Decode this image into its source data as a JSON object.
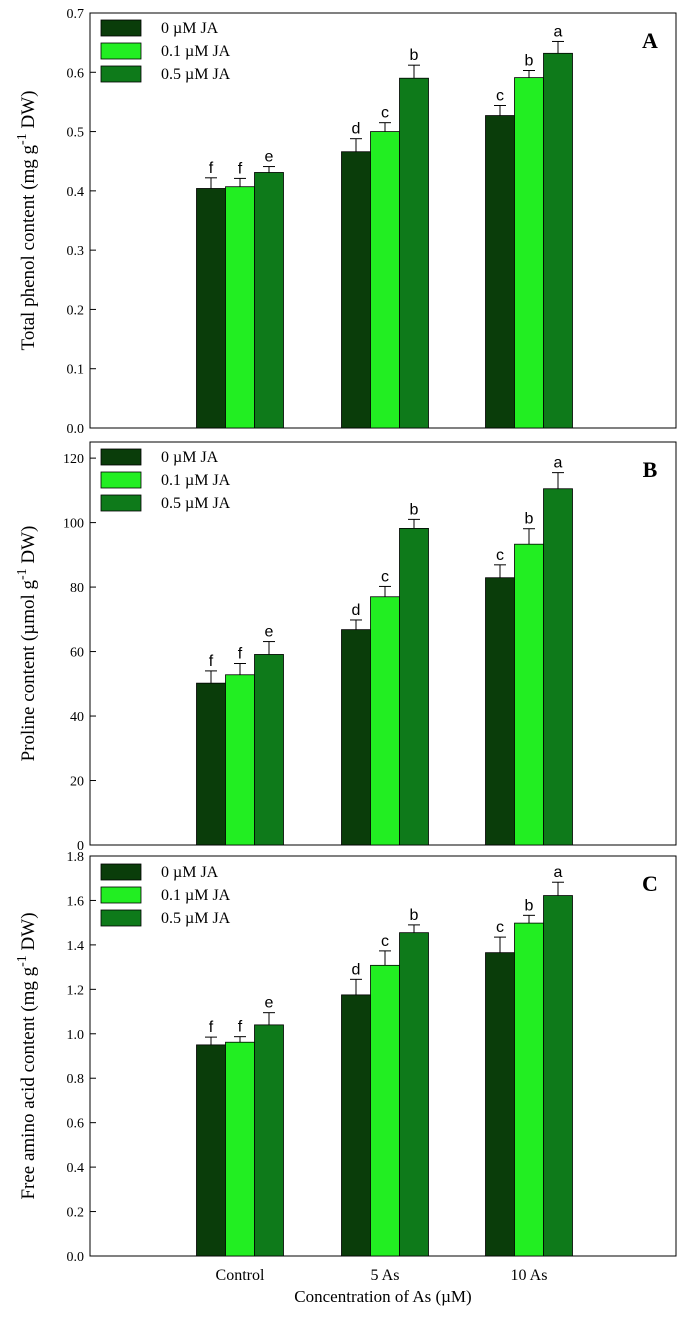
{
  "colors": {
    "series": [
      "#0a3d0a",
      "#22ee22",
      "#0e7a1a"
    ],
    "axis": "#000000",
    "background": "#ffffff"
  },
  "shared": {
    "categories": [
      "Control",
      "5 As",
      "10 As"
    ],
    "xlabel": "Concentration of As (µM)",
    "legend_location": "top-left"
  },
  "chart_data": [
    {
      "type": "bar",
      "panel": "A",
      "ylabel": "Total phenol content (mg g-1 DW)",
      "ylabel_parts": {
        "main": "Total phenol content (mg g",
        "sup": "-1",
        "tail": " DW)"
      },
      "ylim": [
        0,
        0.7
      ],
      "yticks": [
        "0.0",
        "0.1",
        "0.2",
        "0.3",
        "0.4",
        "0.5",
        "0.6",
        "0.7"
      ],
      "yticks_values": [
        0,
        0.1,
        0.2,
        0.3,
        0.4,
        0.5,
        0.6,
        0.7
      ],
      "categories": [
        "Control",
        "5 As",
        "10 As"
      ],
      "series": [
        {
          "name": "0 µM JA",
          "values": [
            0.404,
            0.466,
            0.527
          ],
          "errors": [
            0.018,
            0.022,
            0.017
          ],
          "letters": [
            "f",
            "d",
            "c"
          ]
        },
        {
          "name": "0.1 µM JA",
          "values": [
            0.407,
            0.5,
            0.591
          ],
          "errors": [
            0.014,
            0.015,
            0.012
          ],
          "letters": [
            "f",
            "c",
            "b"
          ]
        },
        {
          "name": "0.5 µM JA",
          "values": [
            0.431,
            0.59,
            0.632
          ],
          "errors": [
            0.01,
            0.022,
            0.02
          ],
          "letters": [
            "e",
            "b",
            "a"
          ]
        }
      ]
    },
    {
      "type": "bar",
      "panel": "B",
      "ylabel": "Proline content (µmol g-1 DW)",
      "ylabel_parts": {
        "main": "Proline content (µmol g",
        "sup": "-1",
        "tail": " DW)"
      },
      "ylim": [
        0,
        125
      ],
      "yticks": [
        "0",
        "20",
        "40",
        "60",
        "80",
        "100",
        "120"
      ],
      "yticks_values": [
        0,
        20,
        40,
        60,
        80,
        100,
        120
      ],
      "categories": [
        "Control",
        "5 As",
        "10 As"
      ],
      "series": [
        {
          "name": "0 µM JA",
          "values": [
            50.2,
            66.8,
            82.9
          ],
          "errors": [
            3.8,
            3.0,
            4.0
          ],
          "letters": [
            "f",
            "d",
            "c"
          ]
        },
        {
          "name": "0.1 µM JA",
          "values": [
            52.8,
            77.0,
            93.3
          ],
          "errors": [
            3.5,
            3.2,
            4.8
          ],
          "letters": [
            "f",
            "c",
            "b"
          ]
        },
        {
          "name": "0.5 µM JA",
          "values": [
            59.1,
            98.2,
            110.5
          ],
          "errors": [
            4.0,
            2.8,
            5.0
          ],
          "letters": [
            "e",
            "b",
            "a"
          ]
        }
      ]
    },
    {
      "type": "bar",
      "panel": "C",
      "ylabel": "Free amino acid content (mg g-1 DW)",
      "ylabel_parts": {
        "main": "Free amino acid content (mg g",
        "sup": "-1",
        "tail": " DW)"
      },
      "ylim": [
        0,
        1.8
      ],
      "yticks": [
        "0.0",
        "0.2",
        "0.4",
        "0.6",
        "0.8",
        "1.0",
        "1.2",
        "1.4",
        "1.6",
        "1.8"
      ],
      "yticks_values": [
        0,
        0.2,
        0.4,
        0.6,
        0.8,
        1.0,
        1.2,
        1.4,
        1.6,
        1.8
      ],
      "categories": [
        "Control",
        "5 As",
        "10 As"
      ],
      "series": [
        {
          "name": "0 µM JA",
          "values": [
            0.95,
            1.175,
            1.365
          ],
          "errors": [
            0.035,
            0.07,
            0.07
          ],
          "letters": [
            "f",
            "d",
            "c"
          ]
        },
        {
          "name": "0.1 µM JA",
          "values": [
            0.962,
            1.308,
            1.498
          ],
          "errors": [
            0.025,
            0.065,
            0.035
          ],
          "letters": [
            "f",
            "c",
            "b"
          ]
        },
        {
          "name": "0.5 µM JA",
          "values": [
            1.04,
            1.455,
            1.622
          ],
          "errors": [
            0.055,
            0.035,
            0.06
          ],
          "letters": [
            "e",
            "b",
            "a"
          ]
        }
      ]
    }
  ]
}
